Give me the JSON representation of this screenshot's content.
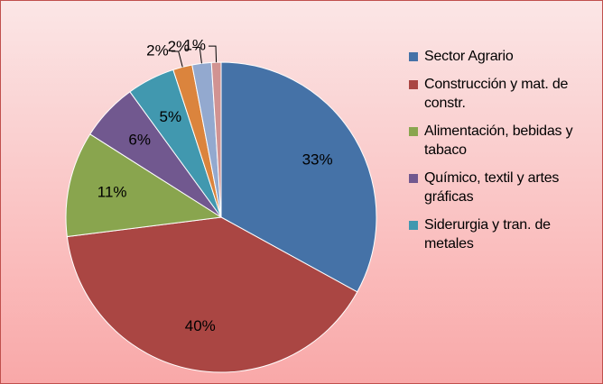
{
  "chart_data": {
    "type": "pie",
    "categories": [
      "Sector Agrario",
      "Construcción y mat. de constr.",
      "Alimentación, bebidas y tabaco",
      "Químico, textil y artes gráficas",
      "Siderurgia y tran. de metales",
      null,
      null,
      null
    ],
    "values": [
      33,
      40,
      11,
      6,
      5,
      2,
      2,
      1
    ],
    "value_labels": [
      "33%",
      "40%",
      "11%",
      "6%",
      "5%",
      "2%",
      "2%",
      "1%"
    ],
    "colors": [
      "#4572a7",
      "#aa4643",
      "#89a54e",
      "#71588f",
      "#4198af",
      "#db843d",
      "#93a9cf",
      "#d19392"
    ],
    "legend": "right"
  }
}
